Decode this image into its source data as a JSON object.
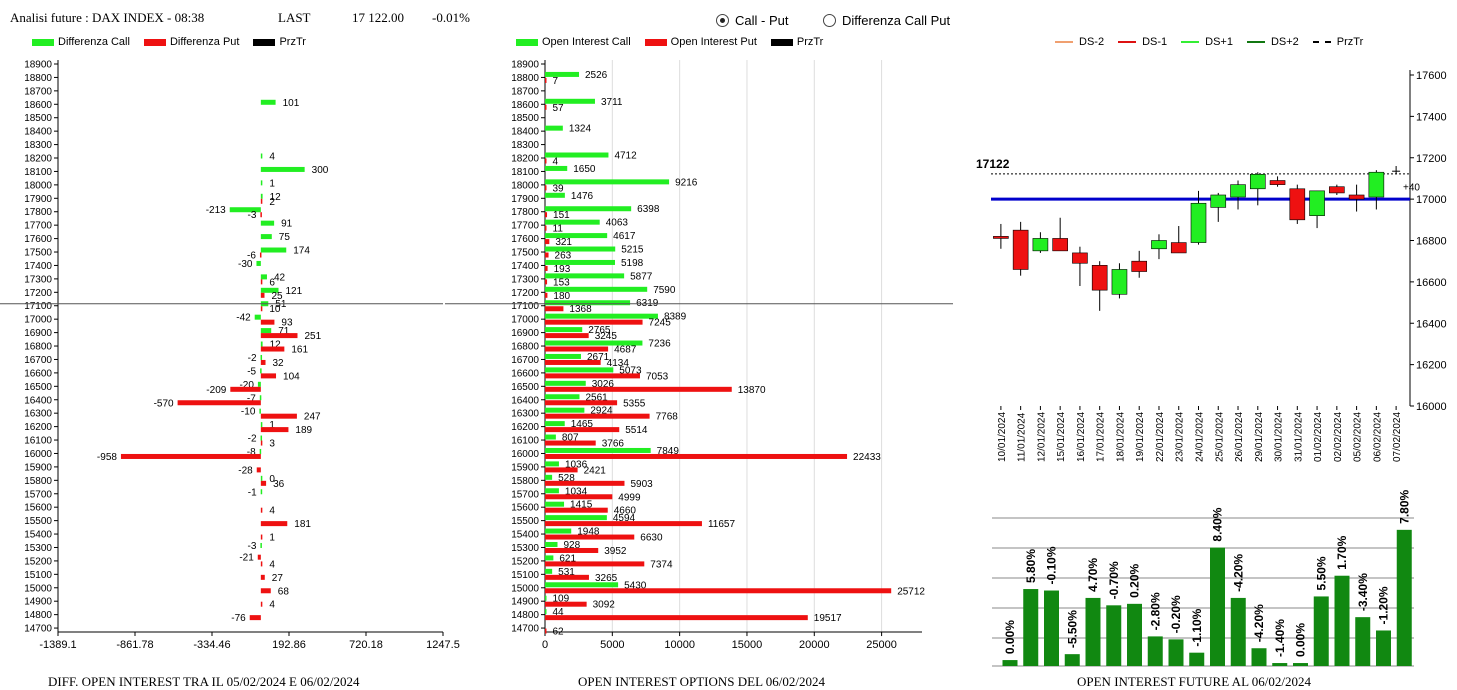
{
  "header": {
    "title": "Analisi future : DAX INDEX - 08:38",
    "last_label": "LAST",
    "last_value": "17 122.00",
    "last_change": "-0.01%"
  },
  "view_options": {
    "call_put": "Call - Put",
    "diff_call_put": "Differenza Call Put",
    "selected": "call_put"
  },
  "colors": {
    "call": "#22ee22",
    "put": "#ee1111",
    "price": "#000000",
    "level": "#0000cc",
    "oi_bar": "#118811"
  },
  "captions": {
    "diff": "DIFF. OPEN INTEREST TRA IL 05/02/2024 E 06/02/2024",
    "oi": "OPEN INTEREST OPTIONS DEL 06/02/2024",
    "future": "OPEN INTEREST FUTURE AL 06/02/2024"
  },
  "chart_data": [
    {
      "type": "bar",
      "orientation": "horizontal",
      "legend": [
        "Differenza Call",
        "Differenza Put",
        "PrzTr"
      ],
      "strikes": [
        18900,
        18800,
        18700,
        18600,
        18500,
        18400,
        18300,
        18200,
        18100,
        18000,
        17900,
        17800,
        17700,
        17600,
        17500,
        17400,
        17300,
        17200,
        17100,
        17000,
        16900,
        16800,
        16700,
        16600,
        16500,
        16400,
        16300,
        16200,
        16100,
        16000,
        15900,
        15800,
        15700,
        15600,
        15500,
        15400,
        15300,
        15200,
        15100,
        15000,
        14900,
        14800,
        14700
      ],
      "xticks": [
        "-1389.1",
        "-861.78",
        "-334.46",
        "192.86",
        "720.18",
        "1247.5"
      ],
      "xlim": [
        -1389.1,
        1247.5
      ],
      "call_diff": {
        "18600": 101,
        "18200": 4,
        "18100": 300,
        "18000": 1,
        "17900": 12,
        "17800": -213,
        "17700": 91,
        "17600": 75,
        "17500": 174,
        "17400": -30,
        "17300": 42,
        "17200": 121,
        "17100": 51,
        "17000": -42,
        "16900": 71,
        "16800": 12,
        "16700": -2,
        "16600": -5,
        "16500": -20,
        "16400": -7,
        "16300": -10,
        "16200": 1,
        "16100": -2,
        "16000": -8,
        "15800": 0,
        "15700": -1,
        "15300": -3
      },
      "put_diff": {
        "17900": 2,
        "17800": -3,
        "17500": -6,
        "17300": 6,
        "17200": 25,
        "17100": 10,
        "17000": 93,
        "16900": 251,
        "16800": 161,
        "16700": 32,
        "16600": 104,
        "16500": -209,
        "16400": -570,
        "16300": 247,
        "16200": 189,
        "16100": 3,
        "16000": -958,
        "15900": -28,
        "15800": 36,
        "15600": 4,
        "15500": 181,
        "15400": 1,
        "15200": 4,
        "15100": 27,
        "15000": 68,
        "14900": 4,
        "14800": -76,
        "15250": -21
      },
      "price_line": 17100
    },
    {
      "type": "bar",
      "orientation": "horizontal",
      "legend": [
        "Open Interest Call",
        "Open Interest Put",
        "PrzTr"
      ],
      "xticks": [
        "0",
        "5000",
        "10000",
        "15000",
        "20000",
        "25000"
      ],
      "xlim": [
        0,
        28000
      ],
      "calls": {
        "18800": 2526,
        "18600": 3711,
        "18400": 1324,
        "18200": 4712,
        "18100": 1650,
        "18000": 9216,
        "17900": 1476,
        "17800": 6398,
        "17700": 4063,
        "17600": 4617,
        "17500": 5215,
        "17400": 5198,
        "17300": 5877,
        "17200": 7590,
        "17100": 6319,
        "17000": 8389,
        "16900": 2765,
        "16800": 7236,
        "16700": 2671,
        "16600": 5073,
        "16500": 3026,
        "16400": 2561,
        "16300": 2924,
        "16200": 1465,
        "16100": 807,
        "16000": 7849,
        "15900": 1036,
        "15800": 528,
        "15700": 1034,
        "15600": 1415,
        "15500": 4594,
        "15400": 1948,
        "15300": 928,
        "15200": 621,
        "15100": 531,
        "15000": 5430,
        "14900": 109,
        "14800": 44
      },
      "puts": {
        "18800": 7,
        "18600": 57,
        "18200": 4,
        "18000": 39,
        "17800": 151,
        "17700": 11,
        "17600": 321,
        "17500": 263,
        "17400": 193,
        "17300": 153,
        "17200": 180,
        "17100": 1368,
        "17000": 7245,
        "16900": 3245,
        "16800": 4687,
        "16700": 4134,
        "16600": 7053,
        "16500": 13870,
        "16400": 5355,
        "16300": 7768,
        "16200": 5514,
        "16100": 3766,
        "16000": 22433,
        "15900": 2421,
        "15800": 5903,
        "15700": 4999,
        "15600": 4660,
        "15500": 11657,
        "15400": 6630,
        "15300": 3952,
        "15200": 7374,
        "15100": 3265,
        "15000": 25712,
        "14900": 3092,
        "14800": 19517,
        "14700": 62
      }
    },
    {
      "type": "candlestick",
      "legend": [
        "DS-2",
        "DS-1",
        "DS+1",
        "DS+2",
        "PrzTr"
      ],
      "dates": [
        "10/01/2024",
        "11/01/2024",
        "12/01/2024",
        "15/01/2024",
        "16/01/2024",
        "17/01/2024",
        "18/01/2024",
        "19/01/2024",
        "22/01/2024",
        "23/01/2024",
        "24/01/2024",
        "25/01/2024",
        "26/01/2024",
        "29/01/2024",
        "30/01/2024",
        "31/01/2024",
        "01/02/2024",
        "02/02/2024",
        "05/02/2024",
        "06/02/2024",
        "07/02/2024"
      ],
      "ohlc": [
        [
          16820,
          16880,
          16760,
          16810
        ],
        [
          16850,
          16890,
          16630,
          16660
        ],
        [
          16750,
          16840,
          16740,
          16810
        ],
        [
          16810,
          16910,
          16750,
          16750
        ],
        [
          16740,
          16770,
          16580,
          16690
        ],
        [
          16680,
          16700,
          16460,
          16560
        ],
        [
          16540,
          16690,
          16520,
          16660
        ],
        [
          16700,
          16750,
          16620,
          16650
        ],
        [
          16760,
          16830,
          16710,
          16800
        ],
        [
          16790,
          16870,
          16740,
          16740
        ],
        [
          16790,
          17040,
          16780,
          16980
        ],
        [
          16960,
          17030,
          16890,
          17020
        ],
        [
          17010,
          17090,
          16950,
          17070
        ],
        [
          17050,
          17130,
          16970,
          17120
        ],
        [
          17090,
          17110,
          17060,
          17070
        ],
        [
          17050,
          17070,
          16880,
          16900
        ],
        [
          16920,
          17040,
          16860,
          17040
        ],
        [
          17060,
          17070,
          17020,
          17030
        ],
        [
          17020,
          17070,
          16940,
          17000
        ],
        [
          17010,
          17140,
          16950,
          17130
        ],
        [
          17130,
          17160,
          17120,
          17135
        ]
      ],
      "ylim": [
        16000,
        17700
      ],
      "yticks": [
        "17600",
        "17400",
        "17200",
        "17000",
        "16800",
        "16600",
        "16400",
        "16200",
        "16000"
      ],
      "last_price_label": "17122",
      "level": 17000,
      "offset_label": "+40"
    },
    {
      "type": "bar",
      "labels": [
        "0.00%",
        "5.80%",
        "-0.10%",
        "-5.50%",
        "4.70%",
        "-0.70%",
        "0.20%",
        "-2.80%",
        "-0.20%",
        "-1.10%",
        "8.40%",
        "-4.20%",
        "-4.20%",
        "-1.40%",
        "0.00%",
        "5.50%",
        "1.70%",
        "-3.40%",
        "-1.20%",
        "7.80%"
      ],
      "values": [
        2,
        26,
        25.5,
        4,
        23,
        20.5,
        21,
        10,
        9,
        4.5,
        40,
        23,
        6,
        1,
        1,
        23.5,
        30.5,
        16.5,
        12,
        46
      ]
    }
  ]
}
